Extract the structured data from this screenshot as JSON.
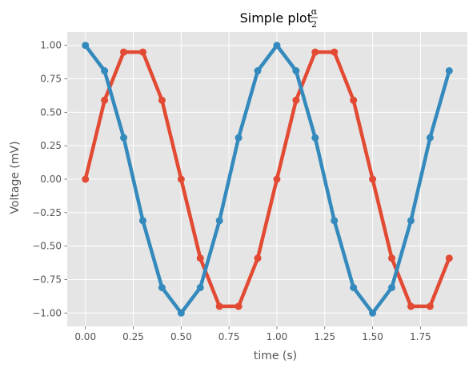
{
  "chart_data": {
    "type": "line",
    "title": "Simple plot",
    "title_math": {
      "numerator": "α",
      "denominator": "2"
    },
    "xlabel": "time (s)",
    "ylabel": "Voltage (mV)",
    "xlim": [
      -0.095,
      1.995
    ],
    "ylim": [
      -1.1,
      1.1
    ],
    "grid": true,
    "style": {
      "background": "#e5e5e5",
      "grid_color": "#ffffff"
    },
    "x_ticks": [
      {
        "value": 0.0,
        "label": "0.00"
      },
      {
        "value": 0.25,
        "label": "0.25"
      },
      {
        "value": 0.5,
        "label": "0.50"
      },
      {
        "value": 0.75,
        "label": "0.75"
      },
      {
        "value": 1.0,
        "label": "1.00"
      },
      {
        "value": 1.25,
        "label": "1.25"
      },
      {
        "value": 1.5,
        "label": "1.50"
      },
      {
        "value": 1.75,
        "label": "1.75"
      }
    ],
    "y_ticks": [
      {
        "value": 1.0,
        "label": "1.00"
      },
      {
        "value": 0.75,
        "label": "0.75"
      },
      {
        "value": 0.5,
        "label": "0.50"
      },
      {
        "value": 0.25,
        "label": "0.25"
      },
      {
        "value": 0.0,
        "label": "0.00"
      },
      {
        "value": -0.25,
        "label": "−0.25"
      },
      {
        "value": -0.5,
        "label": "−0.50"
      },
      {
        "value": -0.75,
        "label": "−0.75"
      },
      {
        "value": -1.0,
        "label": "−1.00"
      }
    ],
    "x": [
      0.0,
      0.1,
      0.2,
      0.3,
      0.4,
      0.5,
      0.6,
      0.7,
      0.8,
      0.9,
      1.0,
      1.1,
      1.2,
      1.3,
      1.4,
      1.5,
      1.6,
      1.7,
      1.8,
      1.9
    ],
    "series": [
      {
        "color": "#e24a33",
        "values": [
          0.0,
          0.59,
          0.95,
          0.95,
          0.59,
          0.0,
          -0.59,
          -0.95,
          -0.95,
          -0.59,
          0.0,
          0.59,
          0.95,
          0.95,
          0.59,
          0.0,
          -0.59,
          -0.95,
          -0.95,
          -0.59
        ]
      },
      {
        "color": "#348abd",
        "values": [
          1.0,
          0.81,
          0.31,
          -0.31,
          -0.81,
          -1.0,
          -0.81,
          -0.31,
          0.31,
          0.81,
          1.0,
          0.81,
          0.31,
          -0.31,
          -0.81,
          -1.0,
          -0.81,
          -0.31,
          0.31,
          0.81
        ]
      }
    ]
  }
}
